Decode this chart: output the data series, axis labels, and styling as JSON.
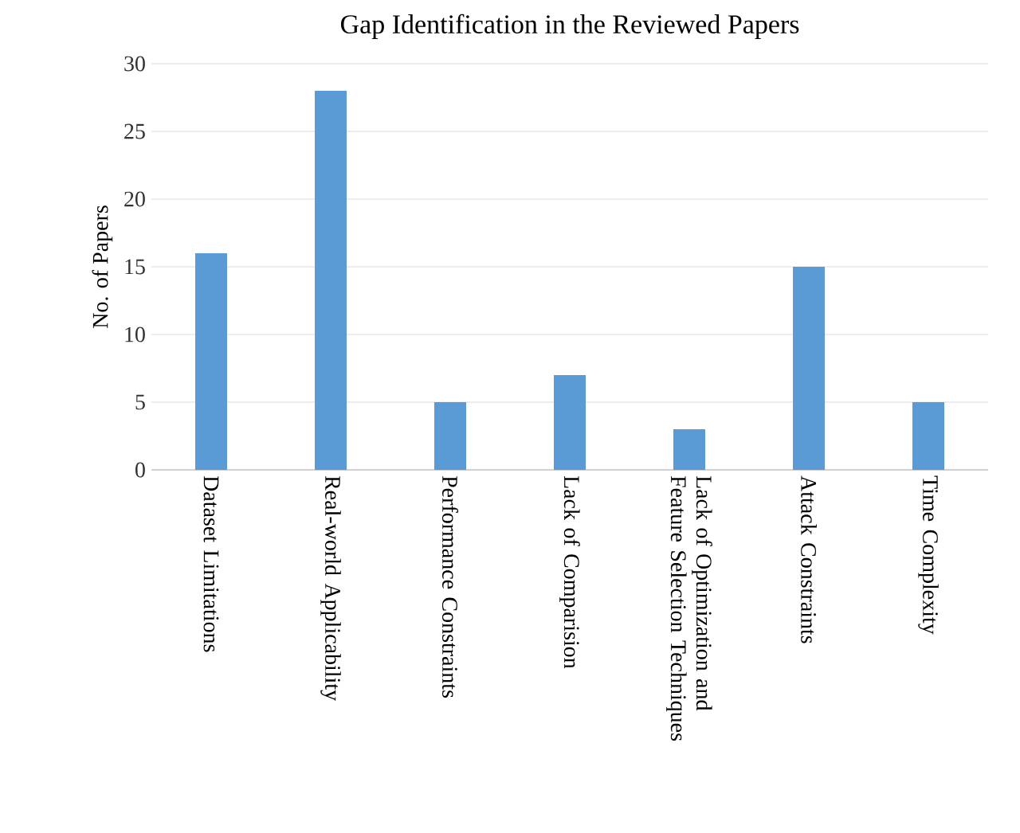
{
  "chart_data": {
    "type": "bar",
    "title": "Gap Identification  in the Reviewed Papers",
    "ylabel": "No. of Papers",
    "categories": [
      "Dataset Limitations",
      "Real-world Applicability",
      "Performance Constraints",
      "Lack of Comparision",
      "Lack of Optimization and Feature Selection Techniques",
      "Attack Constraints",
      "Time Complexity"
    ],
    "values": [
      16,
      28,
      5,
      7,
      3,
      15,
      5
    ],
    "color": "#5b9bd5",
    "ylim": [
      0,
      30
    ],
    "yticks": [
      0,
      5,
      10,
      15,
      20,
      25,
      30
    ],
    "grid": "y"
  }
}
